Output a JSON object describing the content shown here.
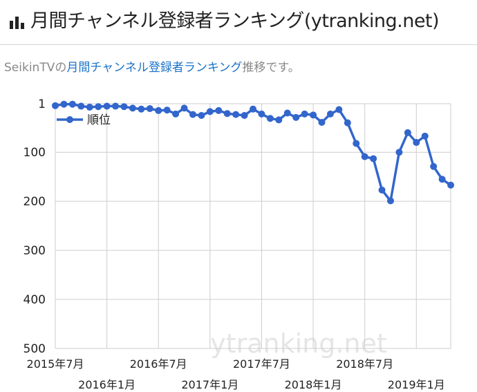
{
  "header": {
    "title": "月間チャンネル登録者ランキング(ytranking.net)",
    "icon": "bar-chart-icon"
  },
  "caption": {
    "prefix": "SeikinTVの",
    "link": "月間チャンネル登録者ランキング",
    "suffix": "推移です。"
  },
  "chart_data": {
    "type": "line",
    "y_reversed": true,
    "ylim": [
      1,
      500
    ],
    "y_ticks": [
      1,
      100,
      200,
      300,
      400,
      500
    ],
    "grid": true,
    "legend": {
      "position": "top-left",
      "label": "順位"
    },
    "series": [
      {
        "name": "順位",
        "color": "#3366cc",
        "values": [
          5,
          2,
          2,
          6,
          8,
          7,
          6,
          6,
          7,
          10,
          12,
          11,
          15,
          14,
          22,
          10,
          23,
          25,
          17,
          15,
          21,
          23,
          25,
          12,
          22,
          31,
          34,
          20,
          29,
          22,
          24,
          39,
          22,
          13,
          40,
          82,
          109,
          113,
          177,
          199,
          100,
          60,
          80,
          67,
          129,
          155,
          167
        ]
      }
    ],
    "x_ticks_top": [
      "2015年7月",
      "2016年7月",
      "2017年7月",
      "2018年7月"
    ],
    "x_ticks_bottom": [
      "2016年1月",
      "2017年1月",
      "2018年1月",
      "2019年1月"
    ],
    "watermark": "ytranking.net"
  }
}
